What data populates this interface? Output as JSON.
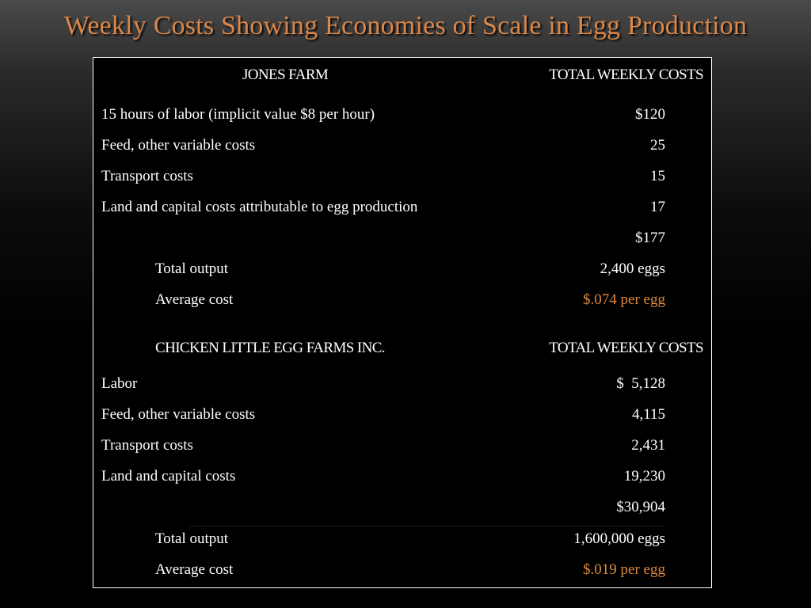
{
  "title": "Weekly Costs Showing Economies of Scale in Egg Production",
  "colors": {
    "title": "#d9874a",
    "accent": "#e08a3c",
    "text": "#ffffff",
    "background": "#000000"
  },
  "jones": {
    "header_label": "JONES FARM",
    "header_value": "TOTAL WEEKLY COSTS",
    "rows": [
      {
        "label": "15 hours of labor (implicit value $8 per hour)",
        "value": "$120"
      },
      {
        "label": "Feed, other variable costs",
        "value": "25"
      },
      {
        "label": "Transport costs",
        "value": "15"
      },
      {
        "label": "Land and capital costs attributable to egg production",
        "value": "17"
      }
    ],
    "total": "$177",
    "output_label": "Total output",
    "output_value": "2,400 eggs",
    "avg_label": "Average cost",
    "avg_value": "$.074 per egg"
  },
  "chicken": {
    "header_label": "CHICKEN LITTLE EGG FARMS INC.",
    "header_value": "TOTAL WEEKLY COSTS",
    "rows": [
      {
        "label": "Labor",
        "value": "$  5,128"
      },
      {
        "label": "Feed, other variable costs",
        "value": "4,115"
      },
      {
        "label": "Transport costs",
        "value": "2,431"
      },
      {
        "label": "Land and capital costs",
        "value": "19,230"
      }
    ],
    "total": "$30,904",
    "output_label": "Total output",
    "output_value": "1,600,000 eggs",
    "avg_label": "Average cost",
    "avg_value": "$.019 per egg"
  }
}
